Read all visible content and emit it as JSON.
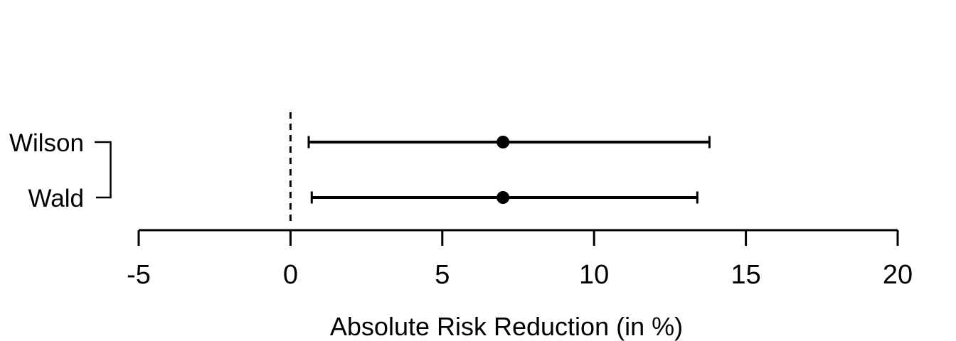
{
  "figure": {
    "background": "#ffffff",
    "foreground": "#000000"
  },
  "chart_data": {
    "type": "scatter",
    "subtype": "forest-plot-error-bars",
    "title": "",
    "xlabel": "Absolute Risk Reduction (in %)",
    "ylabel": "",
    "xlim": [
      -5,
      20
    ],
    "x_ticks": [
      -5,
      0,
      5,
      10,
      15,
      20
    ],
    "x_tick_labels": [
      "-5",
      "0",
      "5",
      "10",
      "15",
      "20"
    ],
    "grid": false,
    "legend": "none",
    "reference_line": {
      "x": 0,
      "style": "dashed",
      "color": "#000000"
    },
    "categories": [
      "Wilson",
      "Wald"
    ],
    "series": [
      {
        "name": "Wilson",
        "estimate": 7.0,
        "ci_lower": 0.6,
        "ci_upper": 13.8
      },
      {
        "name": "Wald",
        "estimate": 7.0,
        "ci_lower": 0.7,
        "ci_upper": 13.4
      }
    ],
    "marker": "filled-circle",
    "connector_bracket": true
  }
}
